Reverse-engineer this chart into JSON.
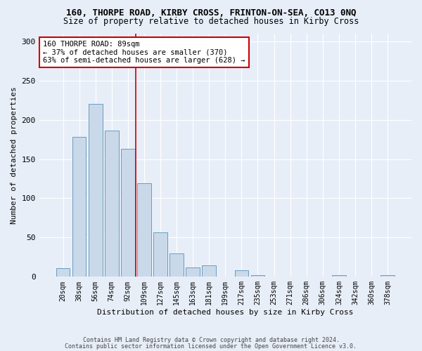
{
  "title": "160, THORPE ROAD, KIRBY CROSS, FRINTON-ON-SEA, CO13 0NQ",
  "subtitle": "Size of property relative to detached houses in Kirby Cross",
  "xlabel": "Distribution of detached houses by size in Kirby Cross",
  "ylabel": "Number of detached properties",
  "categories": [
    "20sqm",
    "38sqm",
    "56sqm",
    "74sqm",
    "92sqm",
    "109sqm",
    "127sqm",
    "145sqm",
    "163sqm",
    "181sqm",
    "199sqm",
    "217sqm",
    "235sqm",
    "253sqm",
    "271sqm",
    "286sqm",
    "306sqm",
    "324sqm",
    "342sqm",
    "360sqm",
    "378sqm"
  ],
  "values": [
    11,
    178,
    220,
    186,
    163,
    119,
    57,
    30,
    12,
    15,
    0,
    8,
    2,
    0,
    0,
    0,
    0,
    2,
    0,
    0,
    2
  ],
  "bar_color": "#c9d9ea",
  "bar_edge_color": "#6a9cbf",
  "vline_index": 4,
  "vline_color": "#cc0000",
  "annotation_text": "160 THORPE ROAD: 89sqm\n← 37% of detached houses are smaller (370)\n63% of semi-detached houses are larger (628) →",
  "annotation_box_color": "#ffffff",
  "annotation_box_edge": "#cc0000",
  "ylim": [
    0,
    310
  ],
  "yticks": [
    0,
    50,
    100,
    150,
    200,
    250,
    300
  ],
  "footer1": "Contains HM Land Registry data © Crown copyright and database right 2024.",
  "footer2": "Contains public sector information licensed under the Open Government Licence v3.0.",
  "bg_color": "#e8eef8",
  "plot_bg_color": "#e8eef8",
  "title_fontsize": 9,
  "subtitle_fontsize": 8.5
}
